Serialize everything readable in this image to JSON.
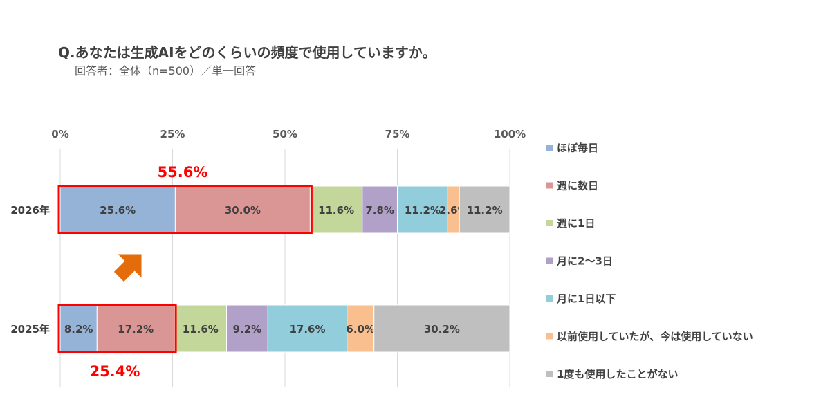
{
  "title": "Q.あなたは生成AIをどのくらいの頻度で使用していますか。",
  "subtitle": "回答者：全体（n=500）／単一回答",
  "chart_data": {
    "type": "bar",
    "orientation": "horizontal",
    "stacked": "percent",
    "categories": [
      "2026年",
      "2025年"
    ],
    "series": [
      {
        "name": "ほぼ毎日",
        "values": [
          25.6,
          8.2
        ],
        "color": "#95B3D7"
      },
      {
        "name": "週に数日",
        "values": [
          30.0,
          17.2
        ],
        "color": "#DA9694"
      },
      {
        "name": "週に1日",
        "values": [
          11.6,
          11.6
        ],
        "color": "#C4D79B"
      },
      {
        "name": "月に2〜3日",
        "values": [
          7.8,
          9.2
        ],
        "color": "#B1A0C7"
      },
      {
        "name": "月に1日以下",
        "values": [
          11.2,
          17.6
        ],
        "color": "#92CDDC"
      },
      {
        "name": "以前使用していたが、今は使用していない",
        "values": [
          2.6,
          6.0
        ],
        "color": "#FABF8F"
      },
      {
        "name": "1度も使用したことがない",
        "values": [
          11.2,
          30.2
        ],
        "color": "#BFBFBF"
      }
    ],
    "data_labels": [
      [
        "25.6%",
        "30.0%",
        "11.6%",
        "7.8%",
        "11.2%",
        "2.6%",
        "11.2%"
      ],
      [
        "8.2%",
        "17.2%",
        "11.6%",
        "9.2%",
        "17.6%",
        "6.0%",
        "30.2%"
      ]
    ],
    "xlim": [
      0,
      100
    ],
    "xticks": [
      "0%",
      "25%",
      "50%",
      "75%",
      "100%"
    ],
    "grid": true,
    "legend_position": "right",
    "annotations": {
      "highlight_2026": "55.6%",
      "highlight_2025": "25.4%",
      "highlight_color": "#FF0000",
      "arrow_color": "#E46C0A",
      "arrow_direction": "up-right"
    }
  }
}
